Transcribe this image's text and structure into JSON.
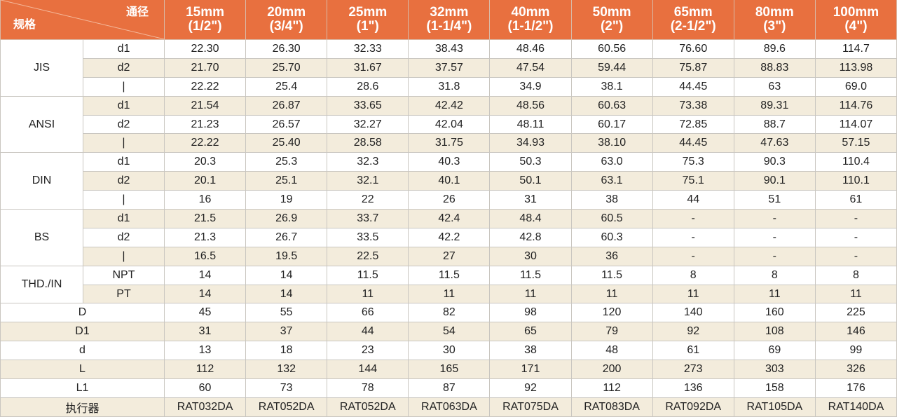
{
  "header": {
    "corner_top": "通径",
    "corner_bottom": "规格",
    "sizes": [
      {
        "mm": "15mm",
        "inch": "(1/2\")"
      },
      {
        "mm": "20mm",
        "inch": "(3/4\")"
      },
      {
        "mm": "25mm",
        "inch": "(1\")"
      },
      {
        "mm": "32mm",
        "inch": "(1-1/4\")"
      },
      {
        "mm": "40mm",
        "inch": "(1-1/2\")"
      },
      {
        "mm": "50mm",
        "inch": "(2\")"
      },
      {
        "mm": "65mm",
        "inch": "(2-1/2\")"
      },
      {
        "mm": "80mm",
        "inch": "(3\")"
      },
      {
        "mm": "100mm",
        "inch": "(4\")"
      }
    ]
  },
  "colors": {
    "header": "#e8703f",
    "stripe": "#f3ecdc",
    "border": "#c9c6c0"
  },
  "groups": [
    {
      "name": "JIS",
      "rows": [
        {
          "label": "d1",
          "values": [
            "22.30",
            "26.30",
            "32.33",
            "38.43",
            "48.46",
            "60.56",
            "76.60",
            "89.6",
            "114.7"
          ]
        },
        {
          "label": "d2",
          "values": [
            "21.70",
            "25.70",
            "31.67",
            "37.57",
            "47.54",
            "59.44",
            "75.87",
            "88.83",
            "113.98"
          ]
        },
        {
          "label": "|",
          "values": [
            "22.22",
            "25.4",
            "28.6",
            "31.8",
            "34.9",
            "38.1",
            "44.45",
            "63",
            "69.0"
          ]
        }
      ]
    },
    {
      "name": "ANSI",
      "rows": [
        {
          "label": "d1",
          "values": [
            "21.54",
            "26.87",
            "33.65",
            "42.42",
            "48.56",
            "60.63",
            "73.38",
            "89.31",
            "114.76"
          ]
        },
        {
          "label": "d2",
          "values": [
            "21.23",
            "26.57",
            "32.27",
            "42.04",
            "48.11",
            "60.17",
            "72.85",
            "88.7",
            "114.07"
          ]
        },
        {
          "label": "|",
          "values": [
            "22.22",
            "25.40",
            "28.58",
            "31.75",
            "34.93",
            "38.10",
            "44.45",
            "47.63",
            "57.15"
          ]
        }
      ]
    },
    {
      "name": "DIN",
      "rows": [
        {
          "label": "d1",
          "values": [
            "20.3",
            "25.3",
            "32.3",
            "40.3",
            "50.3",
            "63.0",
            "75.3",
            "90.3",
            "110.4"
          ]
        },
        {
          "label": "d2",
          "values": [
            "20.1",
            "25.1",
            "32.1",
            "40.1",
            "50.1",
            "63.1",
            "75.1",
            "90.1",
            "110.1"
          ]
        },
        {
          "label": "|",
          "values": [
            "16",
            "19",
            "22",
            "26",
            "31",
            "38",
            "44",
            "51",
            "61"
          ]
        }
      ]
    },
    {
      "name": "BS",
      "rows": [
        {
          "label": "d1",
          "values": [
            "21.5",
            "26.9",
            "33.7",
            "42.4",
            "48.4",
            "60.5",
            "-",
            "-",
            "-"
          ]
        },
        {
          "label": "d2",
          "values": [
            "21.3",
            "26.7",
            "33.5",
            "42.2",
            "42.8",
            "60.3",
            "-",
            "-",
            "-"
          ]
        },
        {
          "label": "|",
          "values": [
            "16.5",
            "19.5",
            "22.5",
            "27",
            "30",
            "36",
            "-",
            "-",
            "-"
          ]
        }
      ]
    },
    {
      "name": "THD./IN",
      "rows": [
        {
          "label": "NPT",
          "values": [
            "14",
            "14",
            "11.5",
            "11.5",
            "11.5",
            "11.5",
            "8",
            "8",
            "8"
          ]
        },
        {
          "label": "PT",
          "values": [
            "14",
            "14",
            "11",
            "11",
            "11",
            "11",
            "11",
            "11",
            "11"
          ]
        }
      ]
    }
  ],
  "single_rows": [
    {
      "label": "D",
      "values": [
        "45",
        "55",
        "66",
        "82",
        "98",
        "120",
        "140",
        "160",
        "225"
      ]
    },
    {
      "label": "D1",
      "values": [
        "31",
        "37",
        "44",
        "54",
        "65",
        "79",
        "92",
        "108",
        "146"
      ]
    },
    {
      "label": "d",
      "values": [
        "13",
        "18",
        "23",
        "30",
        "38",
        "48",
        "61",
        "69",
        "99"
      ]
    },
    {
      "label": "L",
      "values": [
        "112",
        "132",
        "144",
        "165",
        "171",
        "200",
        "273",
        "303",
        "326"
      ]
    },
    {
      "label": "L1",
      "values": [
        "60",
        "73",
        "78",
        "87",
        "92",
        "112",
        "136",
        "158",
        "176"
      ]
    },
    {
      "label": "执行器",
      "values": [
        "RAT032DA",
        "RAT052DA",
        "RAT052DA",
        "RAT063DA",
        "RAT075DA",
        "RAT083DA",
        "RAT092DA",
        "RAT105DA",
        "RAT140DA"
      ]
    }
  ]
}
